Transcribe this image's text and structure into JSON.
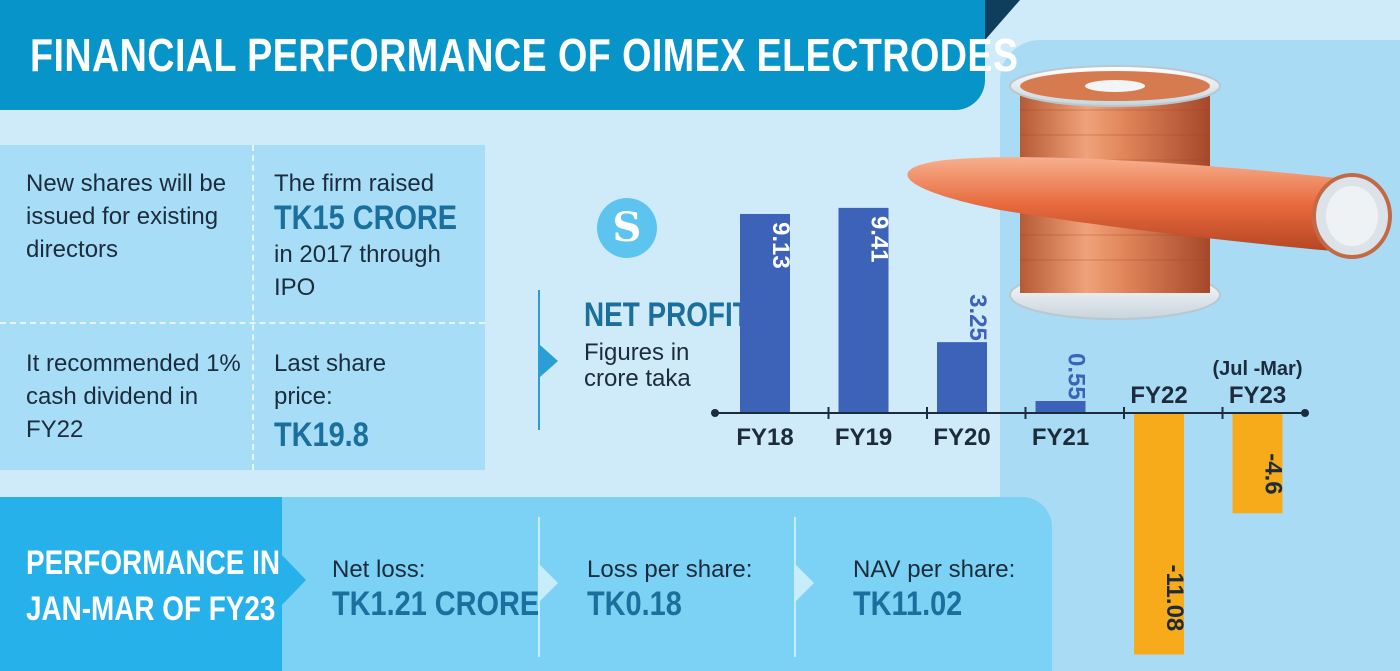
{
  "title": "FINANCIAL PERFORMANCE OF OIMEX ELECTRODES",
  "logo_text": "S",
  "info": {
    "cell1": "New shares will be issued for existing directors",
    "cell2_pre": "The firm raised",
    "cell2_big": "TK15 CRORE",
    "cell2_post": "in 2017 through IPO",
    "cell3": "It recommended 1% cash dividend in FY22",
    "cell4_pre": "Last share price:",
    "cell4_big": "TK19.8"
  },
  "performance": {
    "title_line1": "PERFORMANCE IN",
    "title_line2": "JAN-MAR OF FY23",
    "items": [
      {
        "label": "Net loss:",
        "value": "TK1.21 CRORE"
      },
      {
        "label": "Loss per share:",
        "value": "TK0.18"
      },
      {
        "label": "NAV per share:",
        "value": "TK11.02"
      }
    ]
  },
  "net_profit": {
    "title": "NET PROFIT",
    "subtitle": "Figures in crore taka"
  },
  "colors": {
    "positive": "#3d63b8",
    "negative": "#f7ab1b",
    "title_bg": "#0795c9",
    "accent_text": "#1a6f9c"
  },
  "chart_data": {
    "type": "bar",
    "title": "NET PROFIT",
    "ylabel": "Figures in crore taka",
    "categories": [
      "FY18",
      "FY19",
      "FY20",
      "FY21",
      "FY22",
      "FY23"
    ],
    "category_notes": [
      "",
      "",
      "",
      "",
      "",
      "(Jul -Mar)"
    ],
    "values": [
      9.13,
      9.41,
      3.25,
      0.55,
      -11.08,
      -4.6
    ],
    "value_labels": [
      "9.13",
      "9.41",
      "3.25",
      "0.55",
      "-11.08",
      "-4.6"
    ],
    "ylim": [
      -11.5,
      9.6
    ]
  }
}
